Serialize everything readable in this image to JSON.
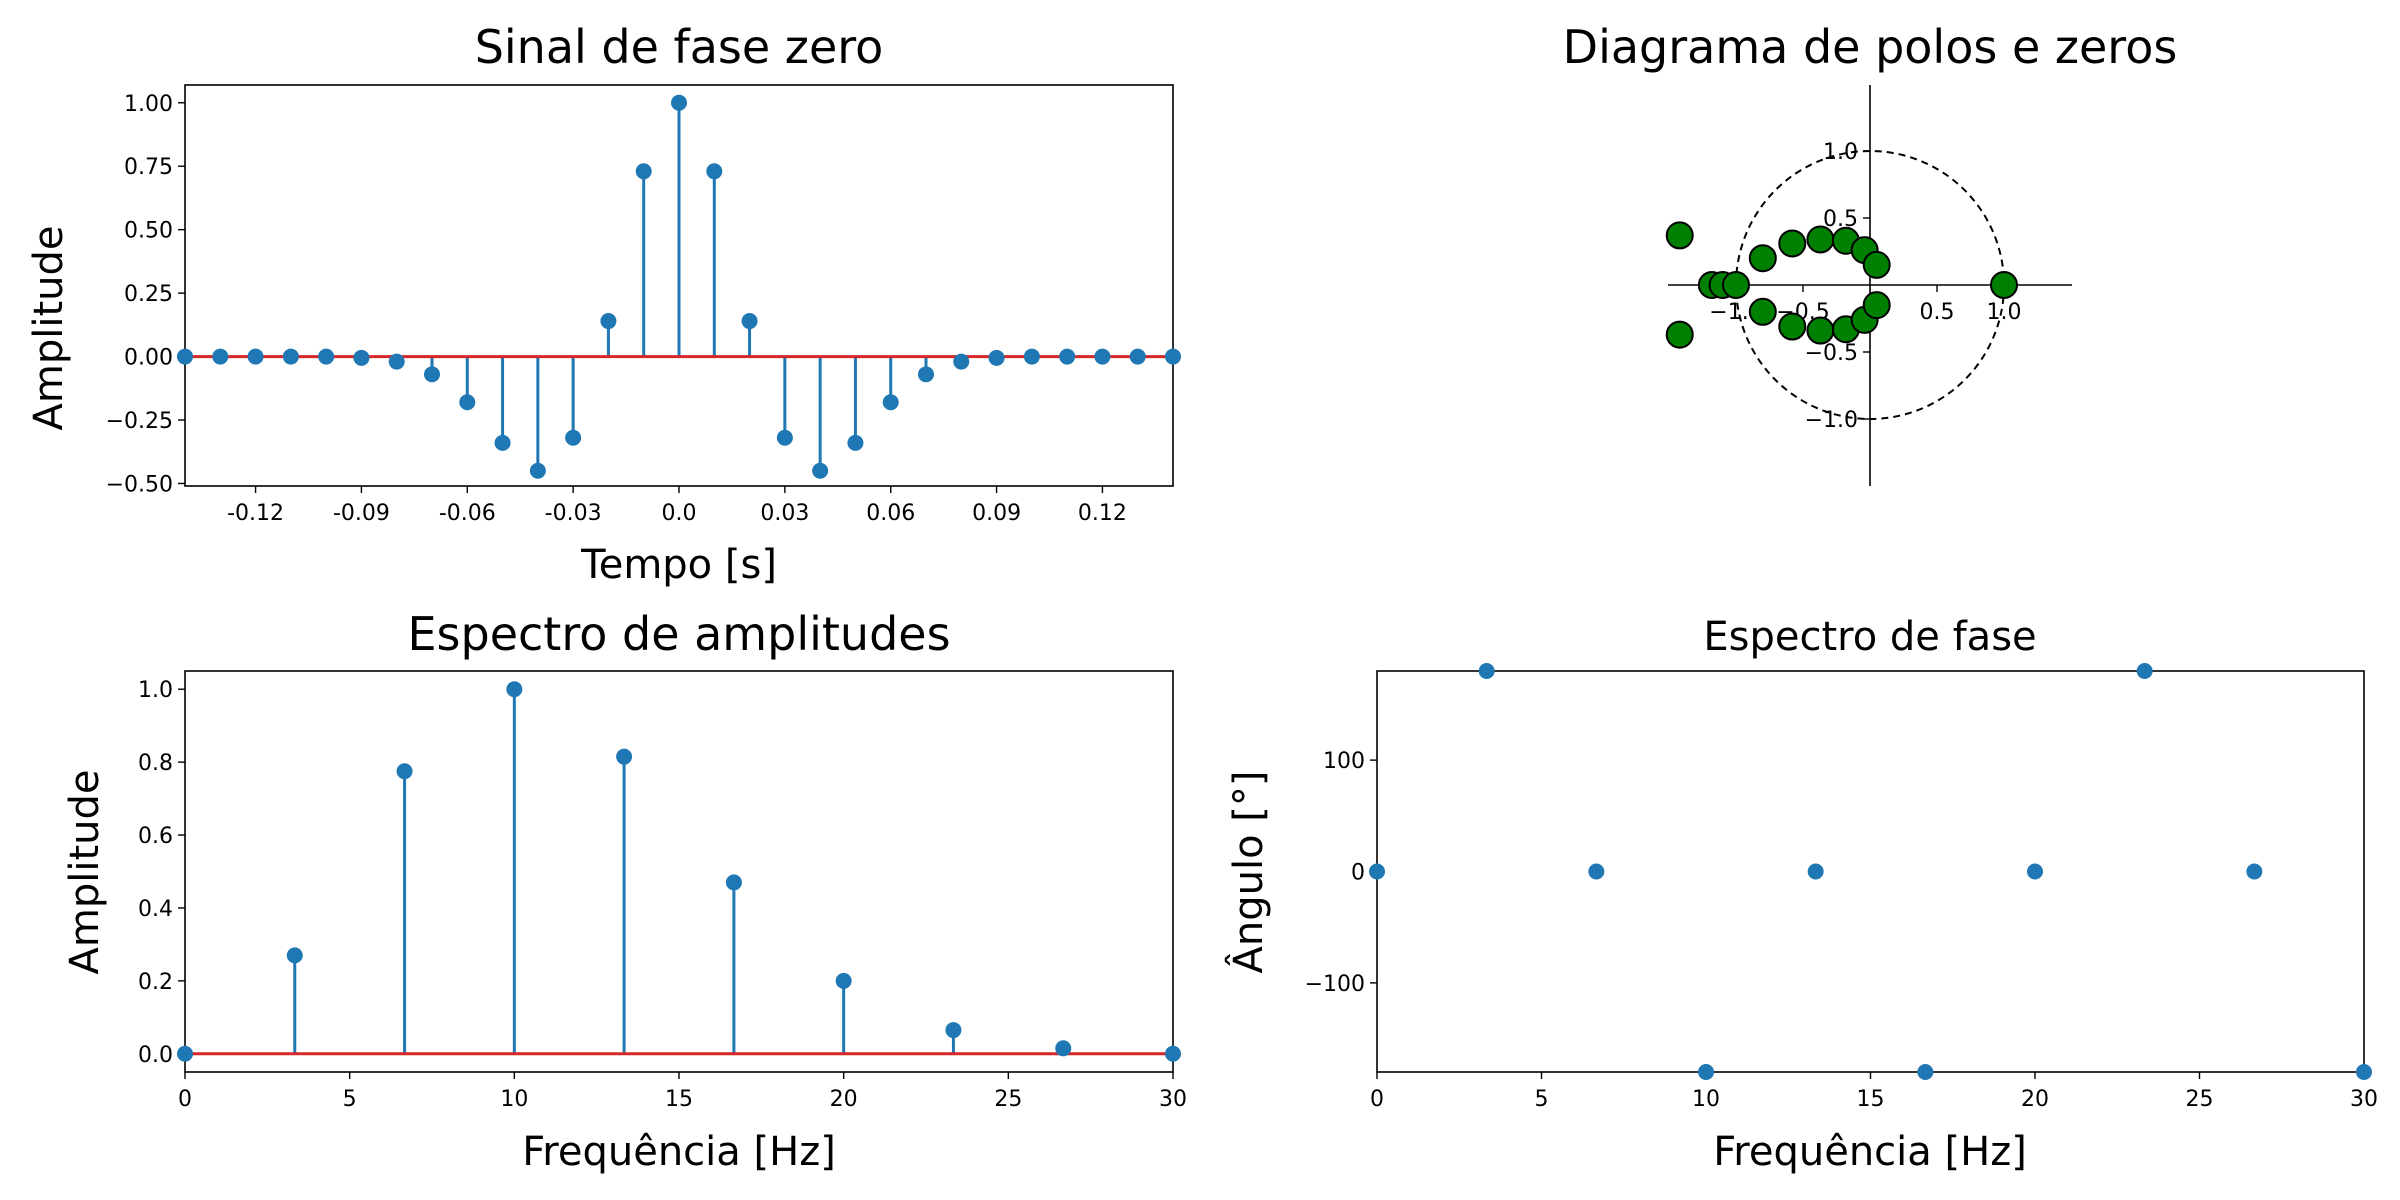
{
  "colors": {
    "stem": "#1f77b4",
    "baseline": "#d62728",
    "marker": "#1f77b4",
    "pz_fill": "#008000",
    "axis": "#000000"
  },
  "chart_data": [
    {
      "id": "time",
      "type": "stem",
      "title": "Sinal de fase zero",
      "xlabel": "Tempo [s]",
      "ylabel": "Amplitude",
      "xlim": [
        -0.14,
        0.14
      ],
      "ylim": [
        -0.51,
        1.07
      ],
      "xticks": [
        -0.12,
        -0.09,
        -0.06,
        -0.03,
        0.0,
        0.03,
        0.06,
        0.09,
        0.12
      ],
      "xtick_labels": [
        "-0.12",
        "-0.09",
        "-0.06",
        "-0.03",
        "0.0",
        "0.03",
        "0.06",
        "0.09",
        "0.12"
      ],
      "yticks": [
        -0.5,
        -0.25,
        0.0,
        0.25,
        0.5,
        0.75,
        1.0
      ],
      "ytick_labels": [
        "−0.50",
        "−0.25",
        "0.00",
        "0.25",
        "0.50",
        "0.75",
        "1.00"
      ],
      "x": [
        -0.14,
        -0.13,
        -0.12,
        -0.11,
        -0.1,
        -0.09,
        -0.08,
        -0.07,
        -0.06,
        -0.05,
        -0.04,
        -0.03,
        -0.02,
        -0.01,
        0.0,
        0.01,
        0.02,
        0.03,
        0.04,
        0.05,
        0.06,
        0.07,
        0.08,
        0.09,
        0.1,
        0.11,
        0.12,
        0.13,
        0.14
      ],
      "y": [
        0.0,
        0.0,
        0.0,
        0.0,
        0.0,
        -0.005,
        -0.02,
        -0.07,
        -0.18,
        -0.34,
        -0.45,
        -0.32,
        0.14,
        0.73,
        1.0,
        0.73,
        0.14,
        -0.32,
        -0.45,
        -0.34,
        -0.18,
        -0.07,
        -0.02,
        -0.005,
        0.0,
        0.0,
        0.0,
        0.0,
        0.0
      ]
    },
    {
      "id": "pz",
      "type": "scatter",
      "title": "Diagrama de polos e zeros",
      "xlim": [
        -1.5,
        1.5
      ],
      "ylim": [
        -1.5,
        1.5
      ],
      "xtick_labels": [
        "−1.0",
        "−0.5",
        "0.5",
        "1.0"
      ],
      "xticks": [
        -1.0,
        -0.5,
        0.5,
        1.0
      ],
      "yticks": [
        -1.0,
        -0.5,
        0.5,
        1.0
      ],
      "ytick_labels": [
        "−1.0",
        "−0.5",
        "0.5",
        "1.0"
      ],
      "unit_circle_radius": 1.0,
      "points": [
        {
          "x": -1.42,
          "y": 0.37
        },
        {
          "x": -1.42,
          "y": -0.37
        },
        {
          "x": -1.18,
          "y": 0.0
        },
        {
          "x": -1.1,
          "y": 0.0
        },
        {
          "x": -1.0,
          "y": 0.0
        },
        {
          "x": -0.8,
          "y": 0.2
        },
        {
          "x": -0.8,
          "y": -0.2
        },
        {
          "x": -0.58,
          "y": 0.31
        },
        {
          "x": -0.58,
          "y": -0.31
        },
        {
          "x": -0.37,
          "y": 0.34
        },
        {
          "x": -0.37,
          "y": -0.34
        },
        {
          "x": -0.18,
          "y": 0.33
        },
        {
          "x": -0.18,
          "y": -0.33
        },
        {
          "x": -0.04,
          "y": 0.26
        },
        {
          "x": -0.04,
          "y": -0.26
        },
        {
          "x": 0.05,
          "y": 0.15
        },
        {
          "x": 0.05,
          "y": -0.15
        },
        {
          "x": 1.0,
          "y": 0.0
        }
      ]
    },
    {
      "id": "amp",
      "type": "stem",
      "title": "Espectro de amplitudes",
      "xlabel": "Frequência [Hz]",
      "ylabel": "Amplitude",
      "xlim": [
        0,
        30
      ],
      "ylim": [
        -0.05,
        1.05
      ],
      "xticks": [
        0,
        5,
        10,
        15,
        20,
        25,
        30
      ],
      "xtick_labels": [
        "0",
        "5",
        "10",
        "15",
        "20",
        "25",
        "30"
      ],
      "yticks": [
        0.0,
        0.2,
        0.4,
        0.6,
        0.8,
        1.0
      ],
      "ytick_labels": [
        "0.0",
        "0.2",
        "0.4",
        "0.6",
        "0.8",
        "1.0"
      ],
      "x": [
        0,
        3.333,
        6.667,
        10,
        13.333,
        16.667,
        20,
        23.333,
        26.667,
        30
      ],
      "y": [
        0.0,
        0.27,
        0.775,
        1.0,
        0.815,
        0.47,
        0.2,
        0.065,
        0.015,
        0.0
      ]
    },
    {
      "id": "phase",
      "type": "scatter",
      "title": "Espectro de fase",
      "xlabel": "Frequência [Hz]",
      "ylabel": "Ângulo [°]",
      "xlim": [
        0,
        30
      ],
      "ylim": [
        -180,
        180
      ],
      "xticks": [
        0,
        5,
        10,
        15,
        20,
        25,
        30
      ],
      "xtick_labels": [
        "0",
        "5",
        "10",
        "15",
        "20",
        "25",
        "30"
      ],
      "yticks": [
        -100,
        0,
        100
      ],
      "ytick_labels": [
        "−100",
        "0",
        "100"
      ],
      "x": [
        0,
        3.333,
        6.667,
        10,
        13.333,
        16.667,
        20,
        23.333,
        26.667,
        30
      ],
      "y": [
        0,
        180,
        0,
        -180,
        0,
        -180,
        0,
        180,
        0,
        -180
      ]
    }
  ]
}
